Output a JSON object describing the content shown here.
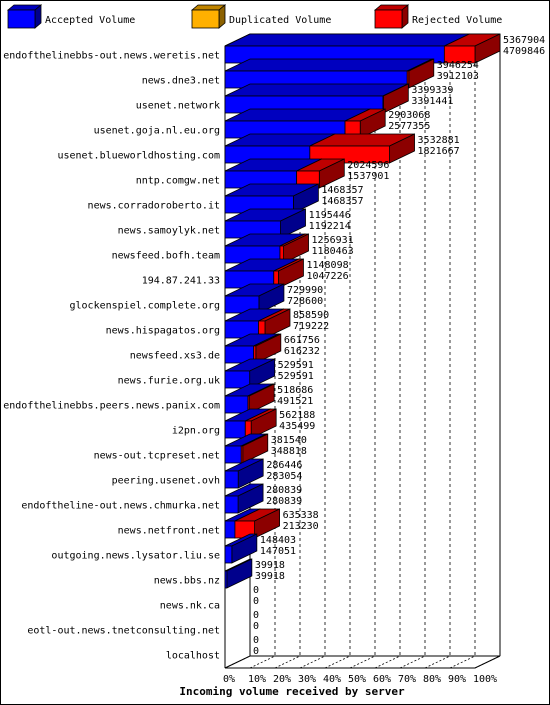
{
  "chart_data": {
    "type": "bar",
    "orientation": "horizontal",
    "stacked": true,
    "xlabel": "Incoming volume received by server",
    "xticks": [
      "0%",
      "10%",
      "20%",
      "30%",
      "40%",
      "50%",
      "60%",
      "70%",
      "80%",
      "90%",
      "100%"
    ],
    "xlim": [
      0,
      5367904
    ],
    "legend_placement": "top",
    "series": [
      {
        "name": "Accepted Volume",
        "color": "#0000ff"
      },
      {
        "name": "Duplicated Volume",
        "color": "#ffb000"
      },
      {
        "name": "Rejected Volume",
        "color": "#ff0000"
      }
    ],
    "rows": [
      {
        "server": "endofthelinebbs-out.news.weretis.net",
        "total": 5367904,
        "accepted": 4709846,
        "duplicated": 0
      },
      {
        "server": "news.dne3.net",
        "total": 3946254,
        "accepted": 3912103,
        "duplicated": 0
      },
      {
        "server": "usenet.network",
        "total": 3399339,
        "accepted": 3391441,
        "duplicated": 0
      },
      {
        "server": "usenet.goja.nl.eu.org",
        "total": 2903068,
        "accepted": 2577355,
        "duplicated": 0
      },
      {
        "server": "usenet.blueworldhosting.com",
        "total": 3532881,
        "accepted": 1821667,
        "duplicated": 0
      },
      {
        "server": "nntp.comgw.net",
        "total": 2024596,
        "accepted": 1537901,
        "duplicated": 0
      },
      {
        "server": "news.corradoroberto.it",
        "total": 1468357,
        "accepted": 1468357,
        "duplicated": 0
      },
      {
        "server": "news.samoylyk.net",
        "total": 1195446,
        "accepted": 1192214,
        "duplicated": 0
      },
      {
        "server": "newsfeed.bofh.team",
        "total": 1256931,
        "accepted": 1180463,
        "duplicated": 0
      },
      {
        "server": "194.87.241.33",
        "total": 1148098,
        "accepted": 1047226,
        "duplicated": 0
      },
      {
        "server": "glockenspiel.complete.org",
        "total": 729990,
        "accepted": 728600,
        "duplicated": 1390
      },
      {
        "server": "news.hispagatos.org",
        "total": 858590,
        "accepted": 719222,
        "duplicated": 0
      },
      {
        "server": "newsfeed.xs3.de",
        "total": 661756,
        "accepted": 616232,
        "duplicated": 0
      },
      {
        "server": "news.furie.org.uk",
        "total": 529591,
        "accepted": 529591,
        "duplicated": 0
      },
      {
        "server": "endofthelinebbs.peers.news.panix.com",
        "total": 518686,
        "accepted": 491521,
        "duplicated": 0
      },
      {
        "server": "i2pn.org",
        "total": 562188,
        "accepted": 435499,
        "duplicated": 0
      },
      {
        "server": "news-out.tcpreset.net",
        "total": 381540,
        "accepted": 348818,
        "duplicated": 0
      },
      {
        "server": "peering.usenet.ovh",
        "total": 286446,
        "accepted": 283054,
        "duplicated": 0
      },
      {
        "server": "endoftheline-out.news.chmurka.net",
        "total": 280839,
        "accepted": 280839,
        "duplicated": 0
      },
      {
        "server": "news.netfront.net",
        "total": 635338,
        "accepted": 213230,
        "duplicated": 0
      },
      {
        "server": "outgoing.news.lysator.liu.se",
        "total": 148403,
        "accepted": 147051,
        "duplicated": 0
      },
      {
        "server": "news.bbs.nz",
        "total": 39918,
        "accepted": 39918,
        "duplicated": 0
      },
      {
        "server": "news.nk.ca",
        "total": 0,
        "accepted": 0,
        "duplicated": 0
      },
      {
        "server": "eotl-out.news.tnetconsulting.net",
        "total": 0,
        "accepted": 0,
        "duplicated": 0
      },
      {
        "server": "localhost",
        "total": 0,
        "accepted": 0,
        "duplicated": 0
      }
    ]
  }
}
